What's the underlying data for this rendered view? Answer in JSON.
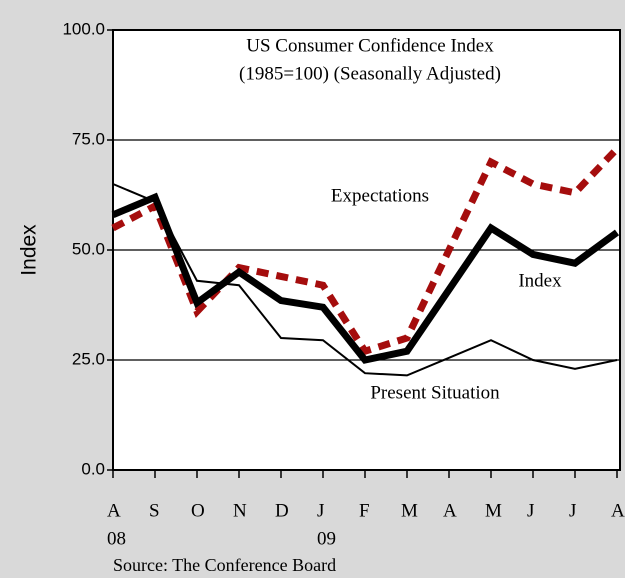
{
  "chart_data": {
    "type": "line",
    "title": "US Consumer Confidence Index",
    "subtitle": "(1985=100) (Seasonally Adjusted)",
    "y_label": "Index",
    "source": "Source: The Conference Board",
    "categories": [
      "A",
      "S",
      "O",
      "N",
      "D",
      "J",
      "F",
      "M",
      "A",
      "M",
      "J",
      "J",
      "A"
    ],
    "year_labels": [
      "08",
      null,
      null,
      null,
      null,
      "09",
      null,
      null,
      null,
      null,
      null,
      null,
      null
    ],
    "series": [
      {
        "name": "Present Situation",
        "color": "#000000",
        "style": "thin",
        "values": [
          65,
          61,
          43,
          42,
          30,
          29.5,
          22,
          21.5,
          25.5,
          29.5,
          25,
          23,
          25
        ]
      },
      {
        "name": "Expectations",
        "color": "#a50d0d",
        "style": "dashed",
        "values": [
          55,
          60,
          36,
          46,
          44,
          42,
          27,
          30,
          50,
          70,
          65,
          63,
          73
        ]
      },
      {
        "name": "Index",
        "color": "#000000",
        "style": "thick",
        "values": [
          58,
          62,
          38,
          45,
          38.5,
          37,
          25,
          27,
          41,
          55,
          49,
          47,
          54
        ]
      }
    ],
    "ylim": [
      0,
      100
    ],
    "yticks": [
      {
        "value": 0,
        "label": "0.0"
      },
      {
        "value": 25,
        "label": "25.0"
      },
      {
        "value": 50,
        "label": "50.0"
      },
      {
        "value": 75,
        "label": "75.0"
      },
      {
        "value": 100,
        "label": "100.0"
      }
    ],
    "grid": true
  }
}
